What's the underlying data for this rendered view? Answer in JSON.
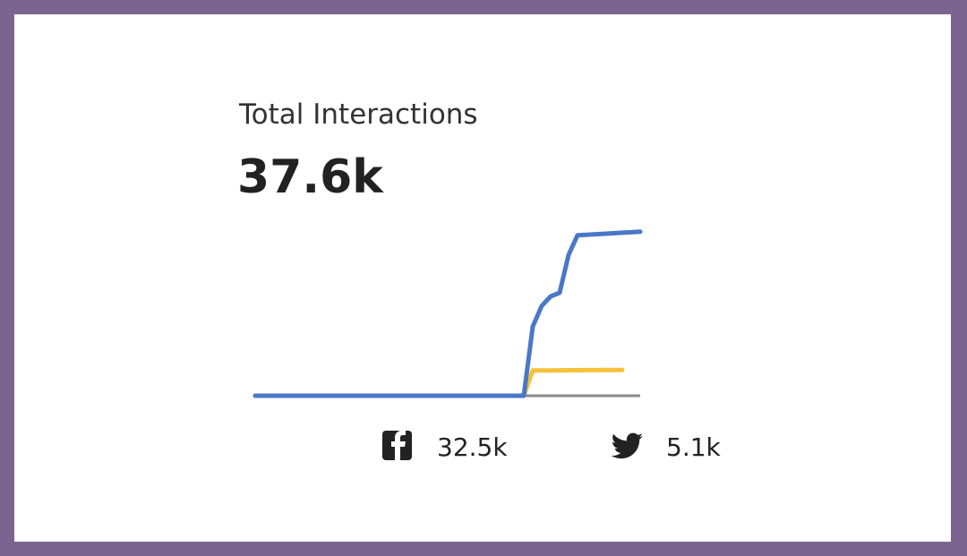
{
  "chart_data": {
    "type": "line",
    "title": "Total Interactions",
    "value": "37.6k",
    "ylim": [
      0,
      33
    ],
    "series": [
      {
        "color": "#f6c23c",
        "label": "5.1k",
        "values": [
          0,
          0,
          0,
          0,
          0,
          0,
          0,
          0,
          0,
          0,
          0,
          0,
          0,
          0,
          0,
          0,
          0,
          0,
          0,
          0,
          0,
          0,
          0,
          0,
          0,
          0,
          0,
          0,
          0,
          0,
          0,
          5.0,
          5.0,
          5.02,
          5.04,
          5.05,
          5.06,
          5.07,
          5.08,
          5.09,
          5.1,
          5.1,
          null,
          null
        ]
      },
      {
        "color": "#4a78c8",
        "label": "32.5k",
        "values": [
          0,
          0,
          0,
          0,
          0,
          0,
          0,
          0,
          0,
          0,
          0,
          0,
          0,
          0,
          0,
          0,
          0,
          0,
          0,
          0,
          0,
          0,
          0,
          0,
          0,
          0,
          0,
          0,
          0,
          0,
          0,
          13.7,
          17.8,
          19.7,
          20.4,
          27.9,
          31.8,
          31.9,
          32.0,
          32.1,
          32.2,
          32.3,
          32.4,
          32.5
        ]
      }
    ]
  }
}
